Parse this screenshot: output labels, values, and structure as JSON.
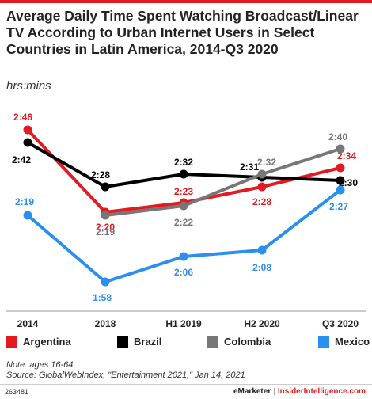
{
  "colors": {
    "accent": "#e21a22",
    "argentina": "#e21a22",
    "brazil": "#000000",
    "colombia": "#777777",
    "mexico": "#2b8ff0"
  },
  "header": {
    "title": "Average Daily Time Spent Watching Broadcast/Linear TV According to Urban Internet Users in Select Countries in Latin America, 2014-Q3 2020",
    "subtitle": "hrs:mins"
  },
  "chart_data": {
    "type": "line",
    "categories": [
      "2014",
      "2018",
      "H1 2019",
      "H2 2020",
      "Q3 2020"
    ],
    "y_unit": "minutes",
    "ylim": [
      110,
      175
    ],
    "grid": false,
    "legend_position": "bottom",
    "series": [
      {
        "name": "Argentina",
        "color": "#e21a22",
        "values": [
          166,
          140,
          143,
          148,
          154
        ],
        "labels": [
          "2:46",
          "2:20",
          "2:23",
          "2:28",
          "2:34"
        ]
      },
      {
        "name": "Brazil",
        "color": "#000000",
        "values": [
          162,
          148,
          152,
          151,
          150
        ],
        "labels": [
          "2:42",
          "2:28",
          "2:32",
          "2:31",
          "2:30"
        ]
      },
      {
        "name": "Colombia",
        "color": "#777777",
        "values": [
          null,
          139,
          142,
          152,
          160
        ],
        "labels": [
          null,
          "2:19",
          "2:22",
          "2:32",
          "2:40"
        ]
      },
      {
        "name": "Mexico",
        "color": "#2b8ff0",
        "values": [
          139,
          118,
          126,
          128,
          147
        ],
        "labels": [
          "2:19",
          "1:58",
          "2:06",
          "2:08",
          "2:27"
        ]
      }
    ]
  },
  "footer": {
    "note": "Note: ages 16-64",
    "source": "Source: GlobalWebIndex, \"Entertainment 2021,\" Jan 14, 2021",
    "chart_id": "263481",
    "brand_left": "eMarketer",
    "brand_sep": "|",
    "brand_right": "InsiderIntelligence.com"
  }
}
